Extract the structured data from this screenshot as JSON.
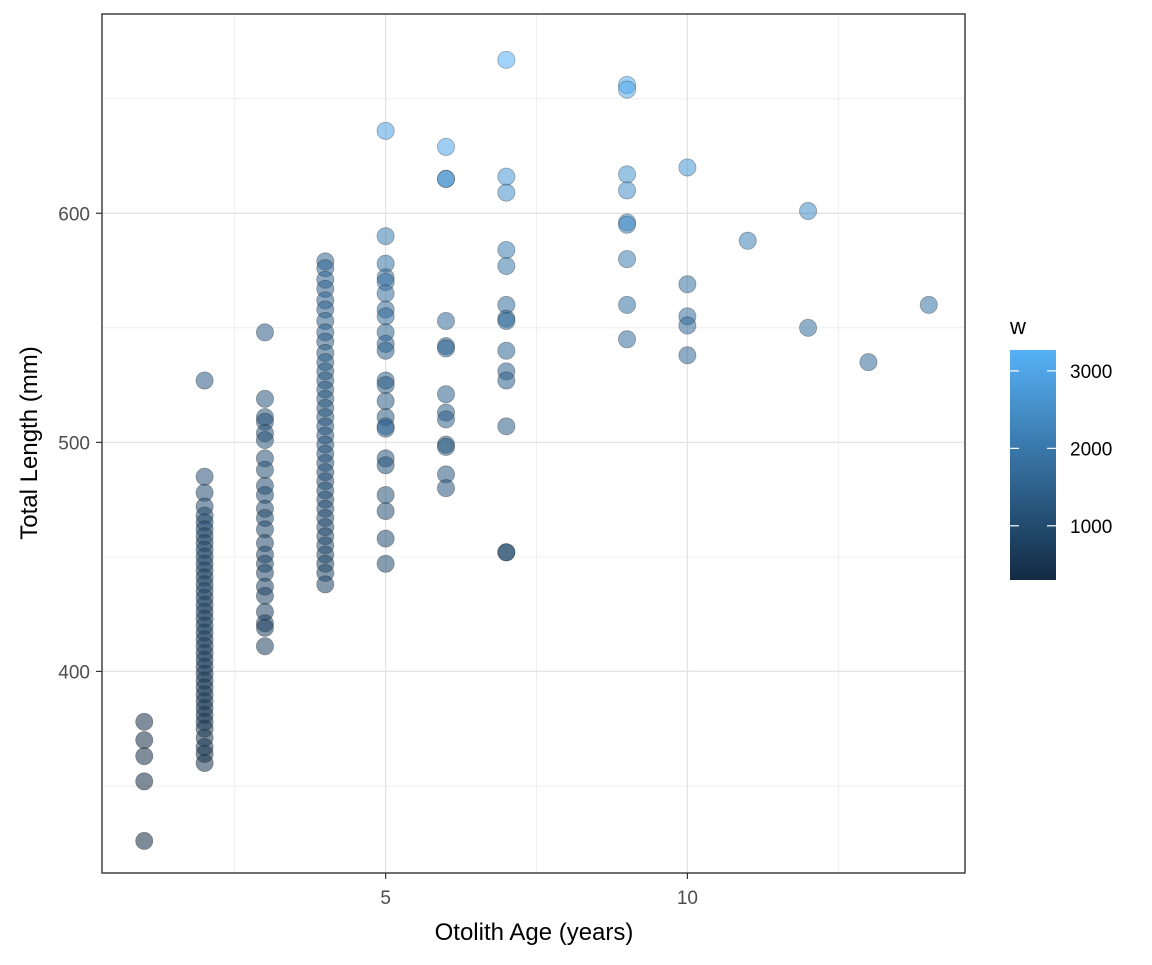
{
  "chart_data": {
    "type": "scatter",
    "xlabel": "Otolith Age (years)",
    "ylabel": "Total Length (mm)",
    "xlim": [
      0.3,
      14.6
    ],
    "ylim": [
      312,
      687
    ],
    "x_ticks": [
      5,
      10
    ],
    "y_ticks": [
      400,
      500,
      600
    ],
    "grid": true,
    "legend": {
      "title": "w",
      "placement": "right",
      "type": "colorbar",
      "range": [
        300,
        3270
      ],
      "ticks": [
        1000,
        2000,
        3000
      ],
      "color_low": "#132B43",
      "color_high": "#56B1F7"
    },
    "point_alpha": 0.55,
    "points": [
      {
        "x": 1,
        "y": 378,
        "w": 420
      },
      {
        "x": 1,
        "y": 370,
        "w": 400
      },
      {
        "x": 1,
        "y": 363,
        "w": 380
      },
      {
        "x": 1,
        "y": 352,
        "w": 350
      },
      {
        "x": 1,
        "y": 326,
        "w": 300
      },
      {
        "x": 2,
        "y": 527,
        "w": 1350
      },
      {
        "x": 2,
        "y": 485,
        "w": 1150
      },
      {
        "x": 2,
        "y": 478,
        "w": 1100
      },
      {
        "x": 2,
        "y": 472,
        "w": 1080
      },
      {
        "x": 2,
        "y": 468,
        "w": 1050
      },
      {
        "x": 2,
        "y": 465,
        "w": 1030
      },
      {
        "x": 2,
        "y": 462,
        "w": 1010
      },
      {
        "x": 2,
        "y": 459,
        "w": 990
      },
      {
        "x": 2,
        "y": 456,
        "w": 975
      },
      {
        "x": 2,
        "y": 453,
        "w": 960
      },
      {
        "x": 2,
        "y": 450,
        "w": 945
      },
      {
        "x": 2,
        "y": 447,
        "w": 930
      },
      {
        "x": 2,
        "y": 444,
        "w": 915
      },
      {
        "x": 2,
        "y": 441,
        "w": 900
      },
      {
        "x": 2,
        "y": 438,
        "w": 885
      },
      {
        "x": 2,
        "y": 435,
        "w": 870
      },
      {
        "x": 2,
        "y": 432,
        "w": 855
      },
      {
        "x": 2,
        "y": 429,
        "w": 840
      },
      {
        "x": 2,
        "y": 426,
        "w": 825
      },
      {
        "x": 2,
        "y": 423,
        "w": 810
      },
      {
        "x": 2,
        "y": 420,
        "w": 795
      },
      {
        "x": 2,
        "y": 417,
        "w": 780
      },
      {
        "x": 2,
        "y": 414,
        "w": 765
      },
      {
        "x": 2,
        "y": 411,
        "w": 750
      },
      {
        "x": 2,
        "y": 408,
        "w": 735
      },
      {
        "x": 2,
        "y": 405,
        "w": 720
      },
      {
        "x": 2,
        "y": 402,
        "w": 705
      },
      {
        "x": 2,
        "y": 399,
        "w": 690
      },
      {
        "x": 2,
        "y": 396,
        "w": 675
      },
      {
        "x": 2,
        "y": 393,
        "w": 660
      },
      {
        "x": 2,
        "y": 390,
        "w": 645
      },
      {
        "x": 2,
        "y": 387,
        "w": 630
      },
      {
        "x": 2,
        "y": 384,
        "w": 615
      },
      {
        "x": 2,
        "y": 381,
        "w": 600
      },
      {
        "x": 2,
        "y": 378,
        "w": 590
      },
      {
        "x": 2,
        "y": 375,
        "w": 580
      },
      {
        "x": 2,
        "y": 371,
        "w": 560
      },
      {
        "x": 2,
        "y": 367,
        "w": 540
      },
      {
        "x": 2,
        "y": 364,
        "w": 520
      },
      {
        "x": 2,
        "y": 360,
        "w": 500
      },
      {
        "x": 3,
        "y": 548,
        "w": 1400
      },
      {
        "x": 3,
        "y": 519,
        "w": 1250
      },
      {
        "x": 3,
        "y": 511,
        "w": 1220
      },
      {
        "x": 3,
        "y": 509,
        "w": 1210
      },
      {
        "x": 3,
        "y": 504,
        "w": 1190
      },
      {
        "x": 3,
        "y": 501,
        "w": 1180
      },
      {
        "x": 3,
        "y": 493,
        "w": 1150
      },
      {
        "x": 3,
        "y": 488,
        "w": 1120
      },
      {
        "x": 3,
        "y": 481,
        "w": 1100
      },
      {
        "x": 3,
        "y": 477,
        "w": 1080
      },
      {
        "x": 3,
        "y": 471,
        "w": 1050
      },
      {
        "x": 3,
        "y": 467,
        "w": 1030
      },
      {
        "x": 3,
        "y": 462,
        "w": 1010
      },
      {
        "x": 3,
        "y": 456,
        "w": 980
      },
      {
        "x": 3,
        "y": 451,
        "w": 960
      },
      {
        "x": 3,
        "y": 447,
        "w": 940
      },
      {
        "x": 3,
        "y": 443,
        "w": 920
      },
      {
        "x": 3,
        "y": 437,
        "w": 900
      },
      {
        "x": 3,
        "y": 433,
        "w": 880
      },
      {
        "x": 3,
        "y": 426,
        "w": 850
      },
      {
        "x": 3,
        "y": 421,
        "w": 820
      },
      {
        "x": 3,
        "y": 419,
        "w": 810
      },
      {
        "x": 3,
        "y": 411,
        "w": 780
      },
      {
        "x": 4,
        "y": 579,
        "w": 1600
      },
      {
        "x": 4,
        "y": 576,
        "w": 1580
      },
      {
        "x": 4,
        "y": 571,
        "w": 1560
      },
      {
        "x": 4,
        "y": 567,
        "w": 1540
      },
      {
        "x": 4,
        "y": 562,
        "w": 1520
      },
      {
        "x": 4,
        "y": 558,
        "w": 1500
      },
      {
        "x": 4,
        "y": 553,
        "w": 1480
      },
      {
        "x": 4,
        "y": 548,
        "w": 1460
      },
      {
        "x": 4,
        "y": 544,
        "w": 1440
      },
      {
        "x": 4,
        "y": 539,
        "w": 1420
      },
      {
        "x": 4,
        "y": 535,
        "w": 1400
      },
      {
        "x": 4,
        "y": 531,
        "w": 1380
      },
      {
        "x": 4,
        "y": 527,
        "w": 1360
      },
      {
        "x": 4,
        "y": 523,
        "w": 1340
      },
      {
        "x": 4,
        "y": 519,
        "w": 1320
      },
      {
        "x": 4,
        "y": 515,
        "w": 1300
      },
      {
        "x": 4,
        "y": 511,
        "w": 1280
      },
      {
        "x": 4,
        "y": 507,
        "w": 1260
      },
      {
        "x": 4,
        "y": 503,
        "w": 1240
      },
      {
        "x": 4,
        "y": 499,
        "w": 1220
      },
      {
        "x": 4,
        "y": 495,
        "w": 1200
      },
      {
        "x": 4,
        "y": 491,
        "w": 1180
      },
      {
        "x": 4,
        "y": 487,
        "w": 1160
      },
      {
        "x": 4,
        "y": 483,
        "w": 1140
      },
      {
        "x": 4,
        "y": 479,
        "w": 1120
      },
      {
        "x": 4,
        "y": 475,
        "w": 1100
      },
      {
        "x": 4,
        "y": 471,
        "w": 1080
      },
      {
        "x": 4,
        "y": 467,
        "w": 1060
      },
      {
        "x": 4,
        "y": 463,
        "w": 1040
      },
      {
        "x": 4,
        "y": 459,
        "w": 1020
      },
      {
        "x": 4,
        "y": 455,
        "w": 1000
      },
      {
        "x": 4,
        "y": 451,
        "w": 980
      },
      {
        "x": 4,
        "y": 447,
        "w": 960
      },
      {
        "x": 4,
        "y": 443,
        "w": 940
      },
      {
        "x": 4,
        "y": 438,
        "w": 900
      },
      {
        "x": 5,
        "y": 636,
        "w": 2900
      },
      {
        "x": 5,
        "y": 590,
        "w": 2100
      },
      {
        "x": 5,
        "y": 578,
        "w": 1900
      },
      {
        "x": 5,
        "y": 572,
        "w": 1850
      },
      {
        "x": 5,
        "y": 570,
        "w": 1830
      },
      {
        "x": 5,
        "y": 565,
        "w": 1800
      },
      {
        "x": 5,
        "y": 558,
        "w": 1700
      },
      {
        "x": 5,
        "y": 555,
        "w": 1680
      },
      {
        "x": 5,
        "y": 548,
        "w": 1600
      },
      {
        "x": 5,
        "y": 543,
        "w": 1560
      },
      {
        "x": 5,
        "y": 540,
        "w": 1540
      },
      {
        "x": 5,
        "y": 527,
        "w": 1450
      },
      {
        "x": 5,
        "y": 525,
        "w": 1430
      },
      {
        "x": 5,
        "y": 518,
        "w": 1400
      },
      {
        "x": 5,
        "y": 511,
        "w": 1370
      },
      {
        "x": 5,
        "y": 507,
        "w": 1600
      },
      {
        "x": 5,
        "y": 506,
        "w": 1590
      },
      {
        "x": 5,
        "y": 493,
        "w": 1250
      },
      {
        "x": 5,
        "y": 490,
        "w": 1230
      },
      {
        "x": 5,
        "y": 477,
        "w": 1180
      },
      {
        "x": 5,
        "y": 470,
        "w": 1150
      },
      {
        "x": 5,
        "y": 458,
        "w": 1100
      },
      {
        "x": 5,
        "y": 447,
        "w": 1050
      },
      {
        "x": 6,
        "y": 629,
        "w": 3000
      },
      {
        "x": 6,
        "y": 615,
        "w": 2600
      },
      {
        "x": 6,
        "y": 615,
        "w": 2580
      },
      {
        "x": 6,
        "y": 553,
        "w": 1700
      },
      {
        "x": 6,
        "y": 542,
        "w": 1600
      },
      {
        "x": 6,
        "y": 541,
        "w": 1590
      },
      {
        "x": 6,
        "y": 521,
        "w": 1500
      },
      {
        "x": 6,
        "y": 513,
        "w": 1460
      },
      {
        "x": 6,
        "y": 510,
        "w": 1440
      },
      {
        "x": 6,
        "y": 499,
        "w": 1380
      },
      {
        "x": 6,
        "y": 498,
        "w": 1370
      },
      {
        "x": 6,
        "y": 486,
        "w": 1300
      },
      {
        "x": 6,
        "y": 480,
        "w": 1250
      },
      {
        "x": 7,
        "y": 667,
        "w": 3270
      },
      {
        "x": 7,
        "y": 616,
        "w": 2700
      },
      {
        "x": 7,
        "y": 609,
        "w": 2500
      },
      {
        "x": 7,
        "y": 584,
        "w": 2100
      },
      {
        "x": 7,
        "y": 577,
        "w": 2000
      },
      {
        "x": 7,
        "y": 560,
        "w": 1800
      },
      {
        "x": 7,
        "y": 554,
        "w": 1750
      },
      {
        "x": 7,
        "y": 553,
        "w": 1740
      },
      {
        "x": 7,
        "y": 540,
        "w": 1600
      },
      {
        "x": 7,
        "y": 531,
        "w": 1550
      },
      {
        "x": 7,
        "y": 527,
        "w": 1500
      },
      {
        "x": 7,
        "y": 507,
        "w": 1400
      },
      {
        "x": 7,
        "y": 452,
        "w": 1000
      },
      {
        "x": 7,
        "y": 452,
        "w": 990
      },
      {
        "x": 9,
        "y": 656,
        "w": 3100
      },
      {
        "x": 9,
        "y": 654,
        "w": 3080
      },
      {
        "x": 9,
        "y": 617,
        "w": 2600
      },
      {
        "x": 9,
        "y": 610,
        "w": 2500
      },
      {
        "x": 9,
        "y": 596,
        "w": 2400
      },
      {
        "x": 9,
        "y": 595,
        "w": 2380
      },
      {
        "x": 9,
        "y": 580,
        "w": 2100
      },
      {
        "x": 9,
        "y": 560,
        "w": 1900
      },
      {
        "x": 9,
        "y": 545,
        "w": 1750
      },
      {
        "x": 10,
        "y": 620,
        "w": 2700
      },
      {
        "x": 10,
        "y": 569,
        "w": 1900
      },
      {
        "x": 10,
        "y": 555,
        "w": 1800
      },
      {
        "x": 10,
        "y": 551,
        "w": 1750
      },
      {
        "x": 10,
        "y": 538,
        "w": 1650
      },
      {
        "x": 11,
        "y": 588,
        "w": 2200
      },
      {
        "x": 12,
        "y": 601,
        "w": 2400
      },
      {
        "x": 12,
        "y": 550,
        "w": 1800
      },
      {
        "x": 13,
        "y": 535,
        "w": 1700
      },
      {
        "x": 14,
        "y": 560,
        "w": 1900
      }
    ]
  }
}
